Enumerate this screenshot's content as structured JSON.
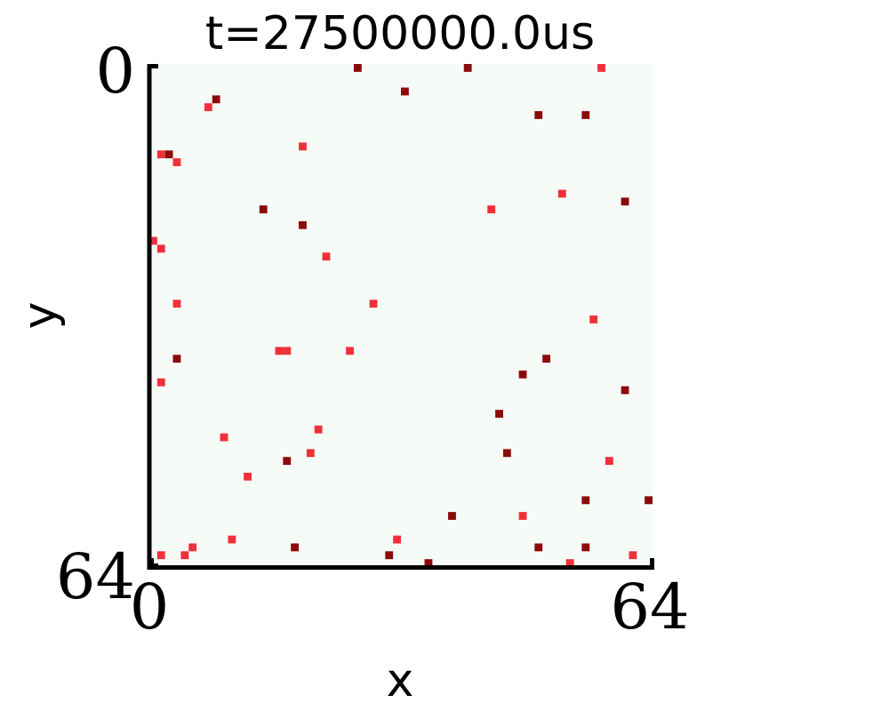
{
  "chart_data": {
    "type": "heatmap",
    "title": "t=27500000.0us",
    "xlabel": "x",
    "ylabel": "y",
    "xlim": [
      0,
      64
    ],
    "ylim": [
      64,
      0
    ],
    "y_inverted": true,
    "grid": false,
    "xticks": [
      "0",
      "64"
    ],
    "yticks": [
      "0",
      "64"
    ],
    "background_color": "#f7fbf7",
    "colors": {
      "bright": "#f03038",
      "dark": "#8b0a0a"
    },
    "series": [
      {
        "shade": "dark",
        "points": [
          [
            26,
            0
          ],
          [
            40,
            0
          ],
          [
            32,
            3
          ],
          [
            8,
            4
          ],
          [
            55,
            6
          ],
          [
            49,
            6
          ],
          [
            2,
            11
          ],
          [
            60,
            17
          ],
          [
            14,
            18
          ],
          [
            19,
            20
          ],
          [
            3,
            37
          ],
          [
            50,
            37
          ],
          [
            47,
            39
          ],
          [
            60,
            41
          ],
          [
            44,
            44
          ],
          [
            45,
            49
          ],
          [
            17,
            50
          ],
          [
            55,
            55
          ],
          [
            63,
            55
          ],
          [
            38,
            57
          ],
          [
            18,
            61
          ],
          [
            49,
            61
          ],
          [
            55,
            61
          ],
          [
            30,
            62
          ],
          [
            35,
            63
          ]
        ]
      },
      {
        "shade": "bright",
        "points": [
          [
            57,
            0
          ],
          [
            7,
            5
          ],
          [
            19,
            10
          ],
          [
            1,
            11
          ],
          [
            3,
            12
          ],
          [
            52,
            16
          ],
          [
            43,
            18
          ],
          [
            0,
            22
          ],
          [
            1,
            23
          ],
          [
            22,
            24
          ],
          [
            3,
            30
          ],
          [
            28,
            30
          ],
          [
            56,
            32
          ],
          [
            16,
            36
          ],
          [
            17,
            36
          ],
          [
            25,
            36
          ],
          [
            1,
            40
          ],
          [
            21,
            46
          ],
          [
            9,
            47
          ],
          [
            20,
            49
          ],
          [
            58,
            50
          ],
          [
            12,
            52
          ],
          [
            47,
            57
          ],
          [
            10,
            60
          ],
          [
            31,
            60
          ],
          [
            5,
            61
          ],
          [
            1,
            62
          ],
          [
            4,
            62
          ],
          [
            61,
            62
          ],
          [
            53,
            63
          ]
        ]
      }
    ]
  }
}
